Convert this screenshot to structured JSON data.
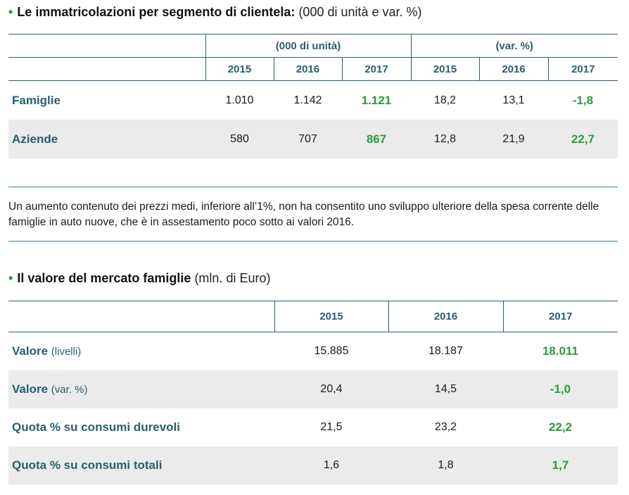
{
  "section1": {
    "bullet": "•",
    "title": "Le immatricolazioni per segmento di clientela:",
    "subtitle": "(000 di unità e var. %)",
    "group_units": "(000 di unità)",
    "group_var": "(var. %)",
    "years": [
      "2015",
      "2016",
      "2017",
      "2015",
      "2016",
      "2017"
    ],
    "rows": [
      {
        "label": "Famiglie",
        "values": [
          "1.010",
          "1.142",
          "1.121",
          "18,2",
          "13,1",
          "-1,8"
        ]
      },
      {
        "label": "Aziende",
        "values": [
          "580",
          "707",
          "867",
          "12,8",
          "21,9",
          "22,7"
        ]
      }
    ]
  },
  "paragraph": "Un aumento contenuto dei prezzi medi, inferiore all’1%, non ha consentito uno sviluppo ulteriore della spesa corrente delle famiglie in auto nuove, che è in assestamento poco sotto ai valori 2016.",
  "section2": {
    "bullet": "•",
    "title": "Il valore del mercato famiglie",
    "subtitle": "(mln. di Euro)",
    "years": [
      "2015",
      "2016",
      "2017"
    ],
    "rows": [
      {
        "label": "Valore",
        "label_suffix": "(livelli)",
        "values": [
          "15.885",
          "18.187",
          "18.011"
        ]
      },
      {
        "label": "Valore",
        "label_suffix": "(var. %)",
        "values": [
          "20,4",
          "14,5",
          "-1,0"
        ]
      },
      {
        "label": "Quota % su consumi durevoli",
        "label_suffix": "",
        "values": [
          "21,5",
          "23,2",
          "22,2"
        ]
      },
      {
        "label": "Quota % su consumi totali",
        "label_suffix": "",
        "values": [
          "1,6",
          "1,8",
          "1,7"
        ]
      }
    ]
  },
  "colors": {
    "accent_green": "#2a9d3a",
    "header_teal": "#2b5f70",
    "row_shade": "#ebebeb"
  }
}
